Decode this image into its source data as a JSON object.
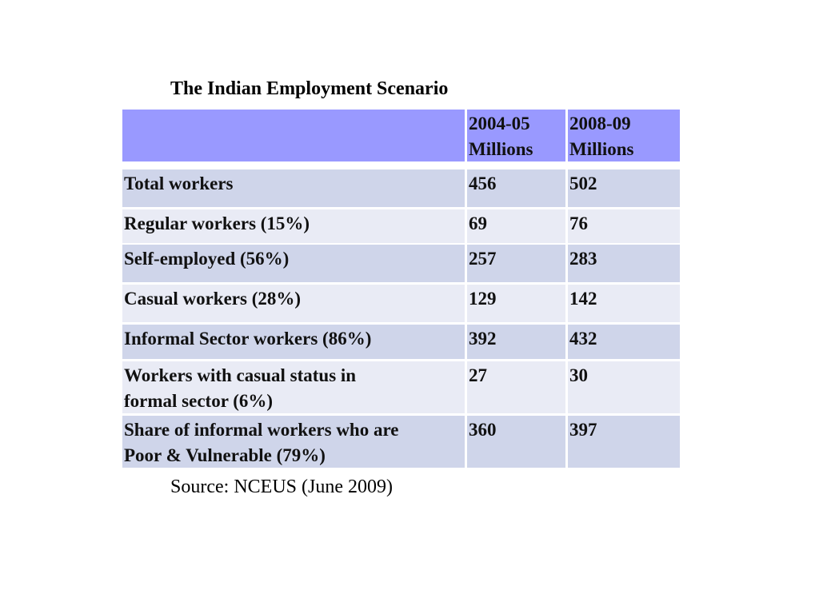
{
  "title": "The Indian Employment Scenario",
  "table": {
    "header": [
      {
        "period": "2004-05",
        "unit": "Millions"
      },
      {
        "period": "2008-09",
        "unit": "Millions"
      }
    ],
    "rows": [
      {
        "label": [
          "Total workers"
        ],
        "values": [
          456,
          502
        ]
      },
      {
        "label": [
          "Regular workers (15%)"
        ],
        "values": [
          69,
          76
        ]
      },
      {
        "label": [
          "Self-employed (56%)"
        ],
        "values": [
          257,
          283
        ]
      },
      {
        "label": [
          "Casual workers (28%)"
        ],
        "values": [
          129,
          142
        ]
      },
      {
        "label": [
          "Informal Sector workers (86%)"
        ],
        "values": [
          392,
          432
        ]
      },
      {
        "label": [
          "Workers with casual status in",
          "formal sector (6%)"
        ],
        "values": [
          27,
          30
        ]
      },
      {
        "label": [
          "Share of informal workers who are",
          "Poor & Vulnerable (79%)"
        ],
        "values": [
          360,
          397
        ]
      }
    ]
  },
  "source": "Source: NCEUS (June 2009)"
}
